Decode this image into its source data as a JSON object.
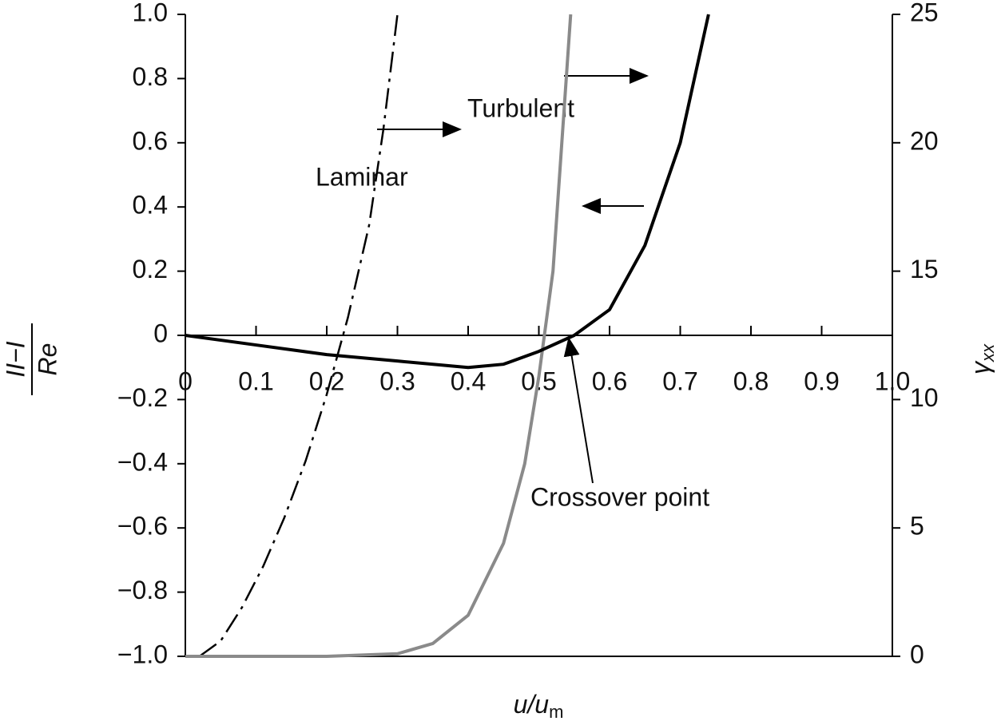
{
  "chart_data": {
    "type": "line",
    "xlabel": {
      "main": "u/u",
      "sub": "m"
    },
    "ylabel": {
      "numerator": "II−I",
      "denominator": "Re"
    },
    "y2label": {
      "main": "γ",
      "sub": "xx"
    },
    "annotations": [
      "Laminar",
      "Turbulent",
      "Crossover point"
    ],
    "xlim": [
      0,
      1
    ],
    "xticks": [
      0,
      0.1,
      0.2,
      0.3,
      0.4,
      0.5,
      0.6,
      0.7,
      0.8,
      0.9,
      {
        "value": 1,
        "label": "1.0"
      }
    ],
    "ylim": [
      -1,
      1
    ],
    "yticks": [
      {
        "value": -1,
        "label": "−1.0"
      },
      {
        "value": -0.8,
        "label": "−0.8"
      },
      {
        "value": -0.6,
        "label": "−0.6"
      },
      {
        "value": -0.4,
        "label": "−0.4"
      },
      {
        "value": -0.2,
        "label": "−0.2"
      },
      0,
      0.2,
      0.4,
      0.6,
      0.8,
      {
        "value": 1,
        "label": "1.0"
      }
    ],
    "y2lim": [
      0,
      25
    ],
    "y2ticks": [
      0,
      5,
      10,
      15,
      20,
      25
    ],
    "series": [
      {
        "color": "#000000",
        "dash": true,
        "axis": "y2",
        "x": [
          0.02,
          0.05,
          0.08,
          0.11,
          0.14,
          0.17,
          0.2,
          0.23,
          0.26,
          0.28,
          0.3
        ],
        "values": [
          0,
          0.6,
          1.9,
          3.5,
          5.4,
          7.6,
          10.2,
          13.2,
          16.8,
          20.5,
          25
        ]
      },
      {
        "color": "#8a8a8a",
        "dash": false,
        "axis": "y2",
        "x": [
          0,
          0.2,
          0.3,
          0.35,
          0.4,
          0.45,
          0.48,
          0.5,
          0.52,
          0.545
        ],
        "values": [
          0,
          0,
          0.1,
          0.5,
          1.6,
          4.4,
          7.5,
          10.9,
          15,
          25
        ]
      },
      {
        "color": "#000000",
        "dash": false,
        "x": [
          0,
          0.1,
          0.2,
          0.3,
          0.4,
          0.45,
          0.5,
          0.55,
          0.6,
          0.65,
          0.7,
          0.74
        ],
        "values": [
          0,
          -0.03,
          -0.06,
          -0.08,
          -0.1,
          -0.09,
          -0.05,
          0,
          0.08,
          0.28,
          0.6,
          1
        ]
      }
    ]
  }
}
